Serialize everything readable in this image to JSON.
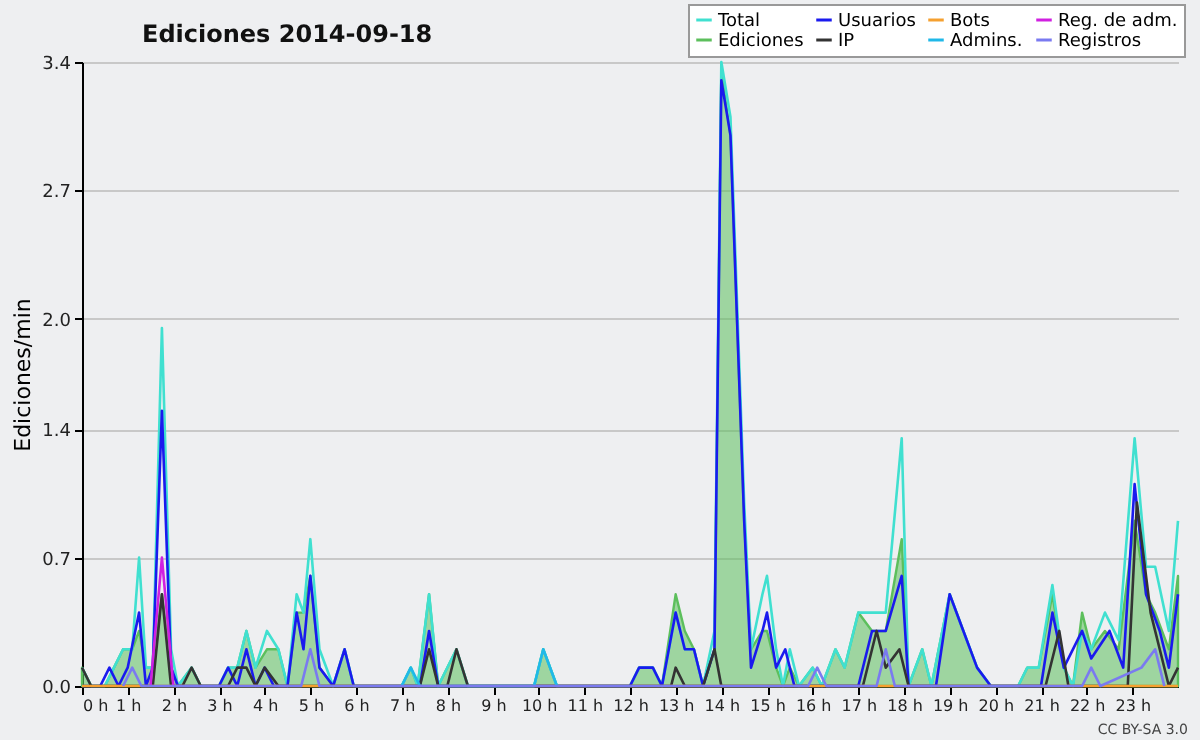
{
  "chart_data": {
    "type": "line",
    "title": "Ediciones  2014-09-18",
    "ylabel": "Ediciones/min",
    "xlim": [
      0,
      24
    ],
    "ylim": [
      0,
      3.4
    ],
    "xticks": [
      {
        "value": 0,
        "label": "0 h"
      },
      {
        "value": 1,
        "label": "1 h"
      },
      {
        "value": 2,
        "label": "2 h"
      },
      {
        "value": 3,
        "label": "3 h"
      },
      {
        "value": 4,
        "label": "4 h"
      },
      {
        "value": 5,
        "label": "5 h"
      },
      {
        "value": 6,
        "label": "6 h"
      },
      {
        "value": 7,
        "label": "7 h"
      },
      {
        "value": 8,
        "label": "8 h"
      },
      {
        "value": 9,
        "label": "9 h"
      },
      {
        "value": 10,
        "label": "10 h"
      },
      {
        "value": 11,
        "label": "11 h"
      },
      {
        "value": 12,
        "label": "12 h"
      },
      {
        "value": 13,
        "label": "13 h"
      },
      {
        "value": 14,
        "label": "14 h"
      },
      {
        "value": 15,
        "label": "15 h"
      },
      {
        "value": 16,
        "label": "16 h"
      },
      {
        "value": 17,
        "label": "17 h"
      },
      {
        "value": 18,
        "label": "18 h"
      },
      {
        "value": 19,
        "label": "19 h"
      },
      {
        "value": 20,
        "label": "20 h"
      },
      {
        "value": 21,
        "label": "21 h"
      },
      {
        "value": 22,
        "label": "22 h"
      },
      {
        "value": 23,
        "label": "23 h"
      }
    ],
    "yticks": [
      {
        "value": 0,
        "label": "0.0"
      },
      0.7,
      1.4,
      {
        "value": 2,
        "label": "2.0"
      },
      2.7,
      3.4
    ],
    "grid": "y",
    "legend": "top right",
    "marker": "none",
    "annotations": [
      "CC BY-SA 3.0"
    ],
    "series": [
      {
        "name": "Total",
        "color": "#40e0d0",
        "x": [
          0,
          0.2,
          0.5,
          0.7,
          0.9,
          1.1,
          1.25,
          1.4,
          1.55,
          1.75,
          1.95,
          2.1,
          2.4,
          2.6,
          3.0,
          3.2,
          3.4,
          3.6,
          3.8,
          4.05,
          4.3,
          4.5,
          4.7,
          4.85,
          5.0,
          5.2,
          5.5,
          5.75,
          5.95,
          7.0,
          7.2,
          7.35,
          7.6,
          7.8,
          8.2,
          8.45,
          9.9,
          10.1,
          10.4,
          12.0,
          12.2,
          12.5,
          12.7,
          13.0,
          13.2,
          13.4,
          13.6,
          13.85,
          14.0,
          14.2,
          14.5,
          14.65,
          14.9,
          15.0,
          15.2,
          15.35,
          15.5,
          15.7,
          16.0,
          16.2,
          16.5,
          16.7,
          17.0,
          17.3,
          17.6,
          17.95,
          18.1,
          18.4,
          18.6,
          19.0,
          19.3,
          19.6,
          19.9,
          20.5,
          20.7,
          20.95,
          21.25,
          21.5,
          21.7,
          21.9,
          22.1,
          22.4,
          22.7,
          23.05,
          23.3,
          23.5,
          23.8,
          24.0
        ],
        "values": [
          0.1,
          0,
          0,
          0.1,
          0.2,
          0.2,
          0.7,
          0.1,
          0.1,
          1.95,
          0.2,
          0,
          0.1,
          0,
          0,
          0.1,
          0.1,
          0.3,
          0.1,
          0.3,
          0.2,
          0,
          0.5,
          0.4,
          0.8,
          0.2,
          0,
          0.2,
          0,
          0,
          0.1,
          0,
          0.5,
          0,
          0.2,
          0,
          0,
          0.2,
          0,
          0,
          0.1,
          0.1,
          0,
          0.4,
          0.2,
          0.2,
          0,
          0.3,
          3.4,
          3.1,
          1.0,
          0.2,
          0.5,
          0.6,
          0.2,
          0,
          0.2,
          0,
          0.1,
          0,
          0.2,
          0.1,
          0.4,
          0.4,
          0.4,
          1.35,
          0,
          0.2,
          0,
          0.5,
          0.3,
          0.1,
          0,
          0,
          0.1,
          0.1,
          0.55,
          0.1,
          0,
          0.3,
          0.2,
          0.4,
          0.25,
          1.35,
          0.65,
          0.65,
          0.3,
          0.9
        ]
      },
      {
        "name": "Ediciones",
        "type": "area",
        "color": "#5cbf5c",
        "x": [
          0,
          0.2,
          0.5,
          0.7,
          0.9,
          1.1,
          1.25,
          1.4,
          1.55,
          1.75,
          1.95,
          2.1,
          2.4,
          2.6,
          3.0,
          3.2,
          3.4,
          3.6,
          3.8,
          4.05,
          4.3,
          4.5,
          4.7,
          4.85,
          5.0,
          5.2,
          5.5,
          5.75,
          5.95,
          7.0,
          7.2,
          7.35,
          7.6,
          7.8,
          8.2,
          8.45,
          9.9,
          10.1,
          10.4,
          12.0,
          12.2,
          12.5,
          12.7,
          13.0,
          13.2,
          13.4,
          13.6,
          13.85,
          14.0,
          14.2,
          14.5,
          14.65,
          14.9,
          15.0,
          15.2,
          15.35,
          15.5,
          15.7,
          16.0,
          16.2,
          16.5,
          16.7,
          17.0,
          17.3,
          17.6,
          17.95,
          18.1,
          18.4,
          18.6,
          19.0,
          19.3,
          19.6,
          19.9,
          20.5,
          20.7,
          20.95,
          21.25,
          21.5,
          21.7,
          21.9,
          22.1,
          22.4,
          22.7,
          23.05,
          23.3,
          23.5,
          23.8,
          24.0
        ],
        "values": [
          0.1,
          0,
          0,
          0.1,
          0.2,
          0.2,
          0.3,
          0.1,
          0.1,
          0.5,
          0.1,
          0,
          0.1,
          0,
          0,
          0.1,
          0.1,
          0.3,
          0.1,
          0.2,
          0.2,
          0,
          0.4,
          0.4,
          0.6,
          0.1,
          0,
          0.2,
          0,
          0,
          0.1,
          0,
          0.5,
          0,
          0.2,
          0,
          0,
          0.2,
          0,
          0,
          0.1,
          0.1,
          0,
          0.5,
          0.3,
          0.2,
          0,
          0.2,
          3.35,
          3.0,
          0.9,
          0.2,
          0.3,
          0.3,
          0.1,
          0,
          0.1,
          0,
          0.1,
          0,
          0.2,
          0.1,
          0.4,
          0.3,
          0.3,
          0.8,
          0,
          0.2,
          0,
          0.5,
          0.3,
          0.1,
          0,
          0,
          0.1,
          0.1,
          0.5,
          0.1,
          0,
          0.4,
          0.2,
          0.3,
          0.2,
          0.9,
          0.5,
          0.4,
          0.2,
          0.6
        ]
      },
      {
        "name": "Usuarios",
        "color": "#1a1aee",
        "x": [
          0,
          0.4,
          0.6,
          0.8,
          1.0,
          1.25,
          1.4,
          1.55,
          1.75,
          1.95,
          2.1,
          3.0,
          3.2,
          3.4,
          3.6,
          3.8,
          4.0,
          4.2,
          4.5,
          4.7,
          4.85,
          5.0,
          5.2,
          5.5,
          5.75,
          5.95,
          7.4,
          7.6,
          7.8,
          12.0,
          12.2,
          12.5,
          12.7,
          13.0,
          13.2,
          13.4,
          13.6,
          13.85,
          14.0,
          14.2,
          14.5,
          14.65,
          14.9,
          15.0,
          15.2,
          15.4,
          15.6,
          17.0,
          17.3,
          17.6,
          17.95,
          18.1,
          18.7,
          19.0,
          19.3,
          19.6,
          19.9,
          21.0,
          21.25,
          21.5,
          21.9,
          22.1,
          22.5,
          22.8,
          23.05,
          23.3,
          23.6,
          23.8,
          24.0
        ],
        "values": [
          0,
          0,
          0.1,
          0,
          0.1,
          0.4,
          0,
          0.1,
          1.5,
          0.1,
          0,
          0,
          0.1,
          0,
          0.2,
          0,
          0.1,
          0,
          0,
          0.4,
          0.2,
          0.6,
          0.1,
          0,
          0.2,
          0,
          0,
          0.3,
          0,
          0,
          0.1,
          0.1,
          0,
          0.4,
          0.2,
          0.2,
          0,
          0.2,
          3.3,
          3.0,
          0.9,
          0.1,
          0.3,
          0.4,
          0.1,
          0.2,
          0,
          0,
          0.3,
          0.3,
          0.6,
          0,
          0,
          0.5,
          0.3,
          0.1,
          0,
          0,
          0.4,
          0.1,
          0.3,
          0.15,
          0.3,
          0.1,
          1.1,
          0.5,
          0.3,
          0.1,
          0.5
        ]
      },
      {
        "name": "IP",
        "color": "#333333",
        "x": [
          0,
          0.2,
          1.55,
          1.75,
          1.95,
          2.2,
          2.4,
          2.6,
          3.2,
          3.4,
          3.6,
          3.8,
          4.0,
          4.3,
          7.4,
          7.6,
          7.8,
          8.0,
          8.2,
          8.45,
          12.9,
          13.0,
          13.2,
          13.6,
          13.85,
          14.0,
          17.1,
          17.4,
          17.6,
          17.9,
          18.1,
          21.1,
          21.4,
          21.6,
          22.9,
          23.1,
          23.4,
          23.6,
          23.8,
          24.0
        ],
        "values": [
          0.1,
          0,
          0,
          0.5,
          0,
          0,
          0.1,
          0,
          0,
          0.1,
          0.1,
          0,
          0.1,
          0,
          0,
          0.2,
          0,
          0,
          0.2,
          0,
          0,
          0.1,
          0,
          0,
          0.2,
          0,
          0,
          0.3,
          0.1,
          0.2,
          0,
          0,
          0.3,
          0,
          0,
          1.0,
          0.4,
          0.2,
          0,
          0.1
        ]
      },
      {
        "name": "Bots",
        "color": "#f5a030",
        "x": [
          0,
          24
        ],
        "values": [
          0,
          0
        ]
      },
      {
        "name": "Admins.",
        "color": "#20b8e8",
        "x": [
          7.0,
          7.2,
          7.4,
          9.9,
          10.1,
          10.4
        ],
        "values": [
          0,
          0.1,
          0,
          0,
          0.2,
          0
        ]
      },
      {
        "name": "Reg. de adm.",
        "color": "#d020e0",
        "x": [
          1.5,
          1.75,
          2.0
        ],
        "values": [
          0,
          0.7,
          0
        ]
      },
      {
        "name": "Registros",
        "color": "#7a7af0",
        "x": [
          0.9,
          1.1,
          1.3,
          4.8,
          5.0,
          5.2,
          15.9,
          16.1,
          16.3,
          17.4,
          17.6,
          17.8,
          21.9,
          22.1,
          22.3,
          23.2,
          23.5,
          23.7
        ],
        "values": [
          0,
          0.1,
          0,
          0,
          0.2,
          0,
          0,
          0.1,
          0,
          0,
          0.2,
          0,
          0,
          0.1,
          0,
          0.1,
          0.2,
          0
        ]
      }
    ]
  }
}
